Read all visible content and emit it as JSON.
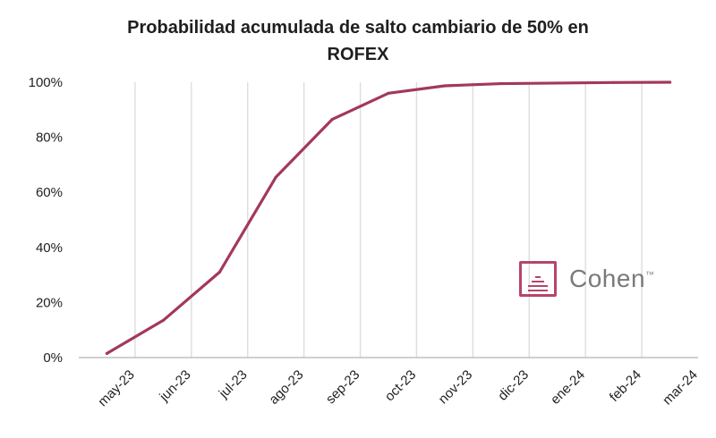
{
  "chart_data": {
    "type": "line",
    "title_lines": [
      "Probabilidad acumulada de salto cambiario de 50% en",
      "ROFEX"
    ],
    "categories": [
      "may-23",
      "jun-23",
      "jul-23",
      "ago-23",
      "sep-23",
      "oct-23",
      "nov-23",
      "dic-23",
      "ene-24",
      "feb-24",
      "mar-24"
    ],
    "series": [
      {
        "values": [
          1.5,
          13.5,
          31,
          65.5,
          86.5,
          96,
          98.7,
          99.5,
          99.7,
          99.9,
          100
        ],
        "color": "#a3385c"
      }
    ],
    "ylim": [
      0,
      100
    ],
    "yticks": [
      0,
      20,
      40,
      60,
      80,
      100
    ],
    "ytick_labels": [
      "0%",
      "20%",
      "40%",
      "60%",
      "80%",
      "100%"
    ],
    "grid": "vertical",
    "xlabel": "",
    "ylabel": ""
  },
  "logo": {
    "text": "Cohen",
    "mark_color": "#b5446b",
    "tm": "™"
  }
}
